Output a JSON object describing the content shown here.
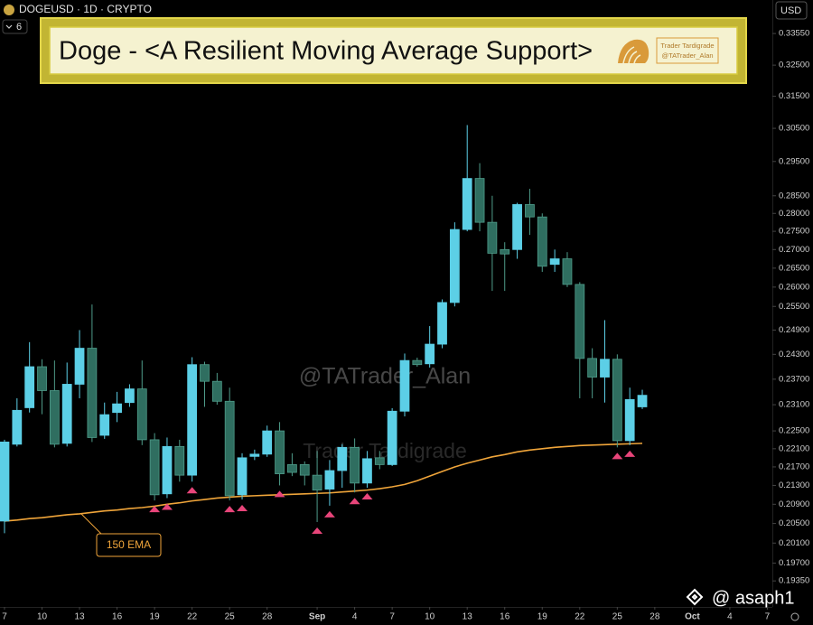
{
  "chart_data": {
    "type": "candlestick",
    "title": "Doge - <A Resilient Moving Average Support>",
    "symbol_line": "DOGEUSD · 1D · CRYPTO",
    "indicators_badge": 6,
    "currency": "USD",
    "logo_texts": [
      "Trader Tardigrade",
      "@TATrader_Alan"
    ],
    "watermarks": [
      "@TATrader_Alan",
      "Trader Tardigrade"
    ],
    "credit": "@ asaph1",
    "log_scale": true,
    "grid": false,
    "up_color": "#5ccfe6",
    "down_color": "#2f6e60",
    "marker_color": "#e8457a",
    "xlim": [
      -0.36,
      61.4
    ],
    "xticks": [
      {
        "value": 0,
        "label": "7"
      },
      {
        "value": 3,
        "label": "10"
      },
      {
        "value": 6,
        "label": "13"
      },
      {
        "value": 9,
        "label": "16"
      },
      {
        "value": 12,
        "label": "19"
      },
      {
        "value": 15,
        "label": "22"
      },
      {
        "value": 18,
        "label": "25"
      },
      {
        "value": 21,
        "label": "28"
      },
      {
        "value": 25,
        "label": "Sep"
      },
      {
        "value": 28,
        "label": "4"
      },
      {
        "value": 31,
        "label": "7"
      },
      {
        "value": 34,
        "label": "10"
      },
      {
        "value": 37,
        "label": "13"
      },
      {
        "value": 40,
        "label": "16"
      },
      {
        "value": 43,
        "label": "19"
      },
      {
        "value": 46,
        "label": "22"
      },
      {
        "value": 49,
        "label": "25"
      },
      {
        "value": 52,
        "label": "28"
      },
      {
        "value": 55,
        "label": "Oct"
      },
      {
        "value": 58,
        "label": "4"
      },
      {
        "value": 61,
        "label": "7"
      }
    ],
    "ylim": [
      0.1885,
      0.347
    ],
    "yticks": [
      {
        "value": 0.3355,
        "label": "0.33550"
      },
      {
        "value": 0.325,
        "label": "0.32500"
      },
      {
        "value": 0.315,
        "label": "0.31500"
      },
      {
        "value": 0.305,
        "label": "0.30500"
      },
      {
        "value": 0.295,
        "label": "0.29500"
      },
      {
        "value": 0.285,
        "label": "0.28500"
      },
      {
        "value": 0.28,
        "label": "0.28000"
      },
      {
        "value": 0.275,
        "label": "0.27500"
      },
      {
        "value": 0.27,
        "label": "0.27000"
      },
      {
        "value": 0.265,
        "label": "0.26500"
      },
      {
        "value": 0.26,
        "label": "0.26000"
      },
      {
        "value": 0.255,
        "label": "0.25500"
      },
      {
        "value": 0.249,
        "label": "0.24900"
      },
      {
        "value": 0.243,
        "label": "0.24300"
      },
      {
        "value": 0.237,
        "label": "0.23700"
      },
      {
        "value": 0.231,
        "label": "0.23100"
      },
      {
        "value": 0.225,
        "label": "0.22500"
      },
      {
        "value": 0.221,
        "label": "0.22100"
      },
      {
        "value": 0.217,
        "label": "0.21700"
      },
      {
        "value": 0.213,
        "label": "0.21300"
      },
      {
        "value": 0.209,
        "label": "0.20900"
      },
      {
        "value": 0.205,
        "label": "0.20500"
      },
      {
        "value": 0.201,
        "label": "0.20100"
      },
      {
        "value": 0.197,
        "label": "0.19700"
      },
      {
        "value": 0.1935,
        "label": "0.19350"
      }
    ],
    "open": [
      0.2055,
      0.222,
      0.2303,
      0.24,
      0.2343,
      0.2222,
      0.2358,
      0.2445,
      0.224,
      0.2292,
      0.2315,
      0.2347,
      0.223,
      0.2112,
      0.2215,
      0.2152,
      0.2405,
      0.2365,
      0.2318,
      0.211,
      0.2193,
      0.2198,
      0.225,
      0.2175,
      0.2175,
      0.2152,
      0.2122,
      0.2162,
      0.2213,
      0.2135,
      0.219,
      0.2175,
      0.2295,
      0.2415,
      0.2407,
      0.2455,
      0.256,
      0.2755,
      0.29,
      0.2775,
      0.27,
      0.27,
      0.2825,
      0.279,
      0.266,
      0.2675,
      0.2607,
      0.242,
      0.2375,
      0.2418,
      0.2228,
      0.2305
    ],
    "high": [
      0.223,
      0.2325,
      0.246,
      0.2418,
      0.2415,
      0.241,
      0.249,
      0.2555,
      0.2315,
      0.234,
      0.2358,
      0.2415,
      0.2245,
      0.2235,
      0.223,
      0.2423,
      0.2412,
      0.2385,
      0.235,
      0.22,
      0.2208,
      0.2262,
      0.227,
      0.22,
      0.2182,
      0.2205,
      0.2185,
      0.222,
      0.2233,
      0.2205,
      0.2205,
      0.2302,
      0.2432,
      0.2422,
      0.25,
      0.2568,
      0.2775,
      0.306,
      0.2945,
      0.285,
      0.272,
      0.283,
      0.287,
      0.28,
      0.27,
      0.2693,
      0.2613,
      0.2445,
      0.2515,
      0.243,
      0.235,
      0.2345
    ],
    "low": [
      0.203,
      0.2215,
      0.2292,
      0.2288,
      0.2213,
      0.2215,
      0.2325,
      0.2225,
      0.2232,
      0.227,
      0.2305,
      0.2218,
      0.2098,
      0.2103,
      0.2138,
      0.2138,
      0.2305,
      0.231,
      0.2098,
      0.21,
      0.2185,
      0.2192,
      0.213,
      0.215,
      0.213,
      0.2053,
      0.2087,
      0.2125,
      0.2115,
      0.2125,
      0.2165,
      0.2172,
      0.2283,
      0.24,
      0.2398,
      0.2445,
      0.255,
      0.275,
      0.275,
      0.259,
      0.259,
      0.2675,
      0.274,
      0.264,
      0.264,
      0.26,
      0.2325,
      0.2325,
      0.2315,
      0.2213,
      0.2218,
      0.23
    ],
    "close": [
      0.2225,
      0.2297,
      0.24,
      0.2343,
      0.222,
      0.2358,
      0.2445,
      0.2235,
      0.2287,
      0.2312,
      0.2347,
      0.223,
      0.211,
      0.2215,
      0.2152,
      0.2405,
      0.2365,
      0.2318,
      0.2108,
      0.219,
      0.2198,
      0.225,
      0.2155,
      0.2158,
      0.2152,
      0.212,
      0.2162,
      0.2213,
      0.2135,
      0.2188,
      0.2175,
      0.2295,
      0.2415,
      0.2405,
      0.2455,
      0.256,
      0.2755,
      0.29,
      0.2775,
      0.269,
      0.2688,
      0.2825,
      0.279,
      0.2655,
      0.2675,
      0.2607,
      0.242,
      0.2375,
      0.2418,
      0.2228,
      0.2322,
      0.2332
    ],
    "ema": {
      "name": "150 EMA",
      "color": "#f0a53a",
      "values": [
        0.2055,
        0.2057,
        0.206,
        0.2062,
        0.2065,
        0.2068,
        0.207,
        0.2073,
        0.2076,
        0.2078,
        0.2081,
        0.2083,
        0.2086,
        0.209,
        0.2093,
        0.2097,
        0.21,
        0.2103,
        0.2105,
        0.2107,
        0.2108,
        0.2109,
        0.211,
        0.2111,
        0.2112,
        0.2113,
        0.2114,
        0.2116,
        0.2118,
        0.212,
        0.2123,
        0.2127,
        0.2132,
        0.214,
        0.215,
        0.216,
        0.217,
        0.2178,
        0.2185,
        0.2192,
        0.2197,
        0.2203,
        0.2207,
        0.221,
        0.2213,
        0.2215,
        0.2217,
        0.2218,
        0.2219,
        0.222,
        0.2221,
        0.2222
      ]
    },
    "markers": [
      12,
      13,
      15,
      18,
      19,
      22,
      25,
      26,
      28,
      29,
      49,
      50
    ]
  }
}
